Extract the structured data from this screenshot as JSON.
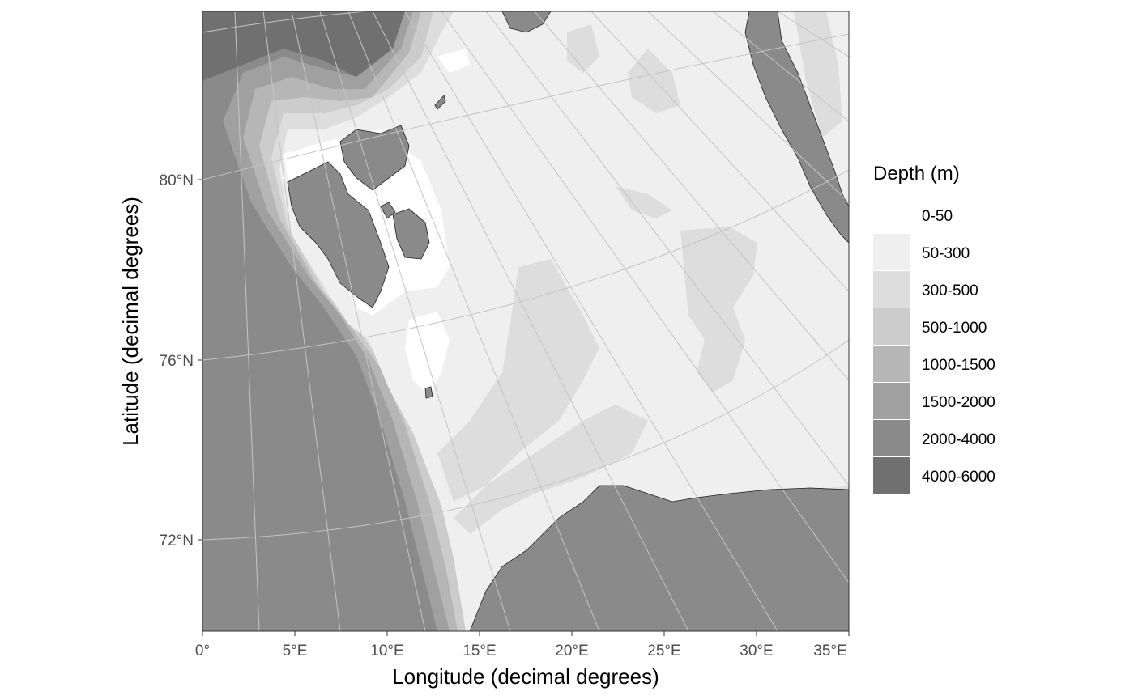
{
  "map": {
    "xlabel": "Longitude (decimal degrees)",
    "ylabel": "Latitude (decimal degrees)",
    "x_ticks": [
      "0°",
      "5°E",
      "10°E",
      "15°E",
      "20°E",
      "25°E",
      "30°E",
      "35°E"
    ],
    "y_ticks": [
      "80°N",
      "76°N",
      "72°N"
    ],
    "colors": {
      "land": "#8a8a8a",
      "coast": "#222222",
      "graticule": "#c4c4c4"
    }
  },
  "legend": {
    "title": "Depth (m)",
    "placement": "right",
    "items": [
      {
        "label": "0-50",
        "color": "#ffffff"
      },
      {
        "label": "50-300",
        "color": "#efefef"
      },
      {
        "label": "300-500",
        "color": "#dddddd"
      },
      {
        "label": "500-1000",
        "color": "#cccccc"
      },
      {
        "label": "1000-1500",
        "color": "#b6b6b6"
      },
      {
        "label": "1500-2000",
        "color": "#a0a0a0"
      },
      {
        "label": "2000-4000",
        "color": "#8a8a8a"
      },
      {
        "label": "4000-6000",
        "color": "#707070"
      }
    ]
  }
}
